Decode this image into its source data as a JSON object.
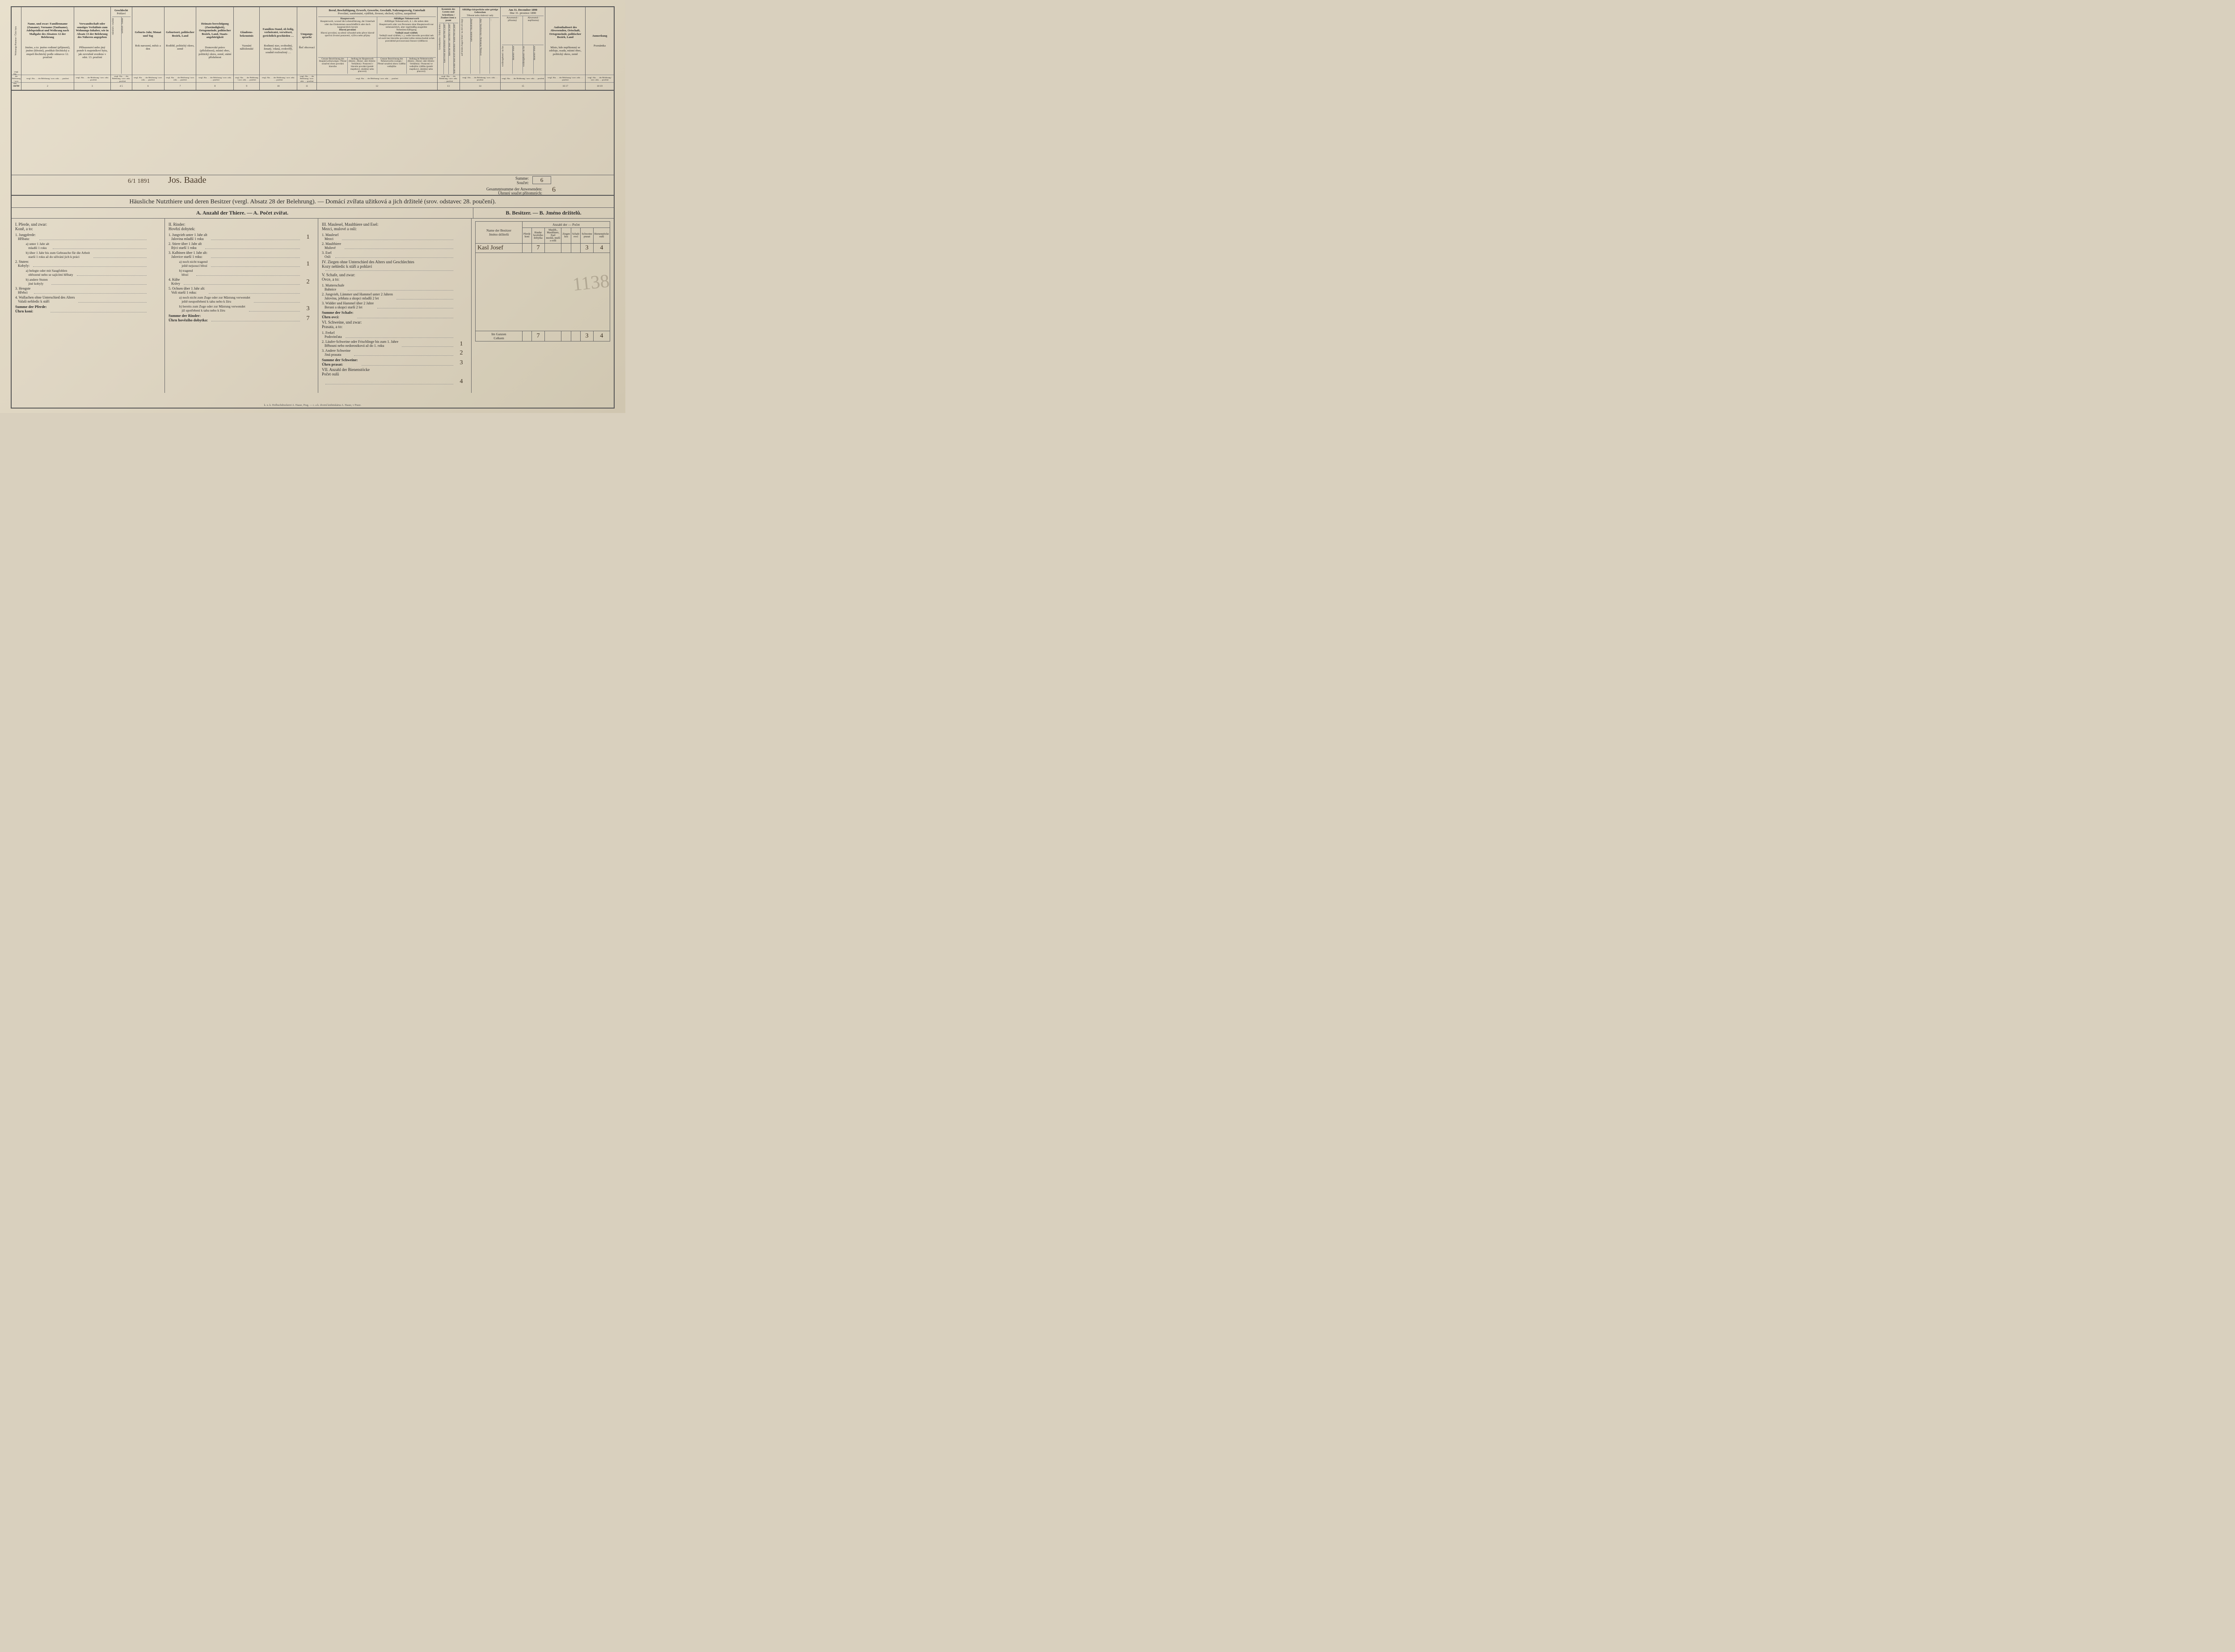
{
  "colors": {
    "paper": "#ddd4c0",
    "ink": "#2b2b2b",
    "hand_ink": "#3a2f22",
    "rule": "#666666"
  },
  "header": {
    "cols": [
      {
        "w": "w-num",
        "de": "Wohnungs-Nummer",
        "cz": "Číslo bytu"
      },
      {
        "w": "w-name",
        "de": "Name, und zwar: Familienname (Zuname), Vorname (Taufname), Adelsprädicat und Weihrang nach Maßgabe des Absatzes 12 der Belehrung",
        "cz": "Jméno, a to: jméno rodinné (příjmení), jméno (křestní), predikát šlechtický a stupeň šlechtický podle odstavce 12. poučení"
      },
      {
        "w": "w-rel",
        "de": "Verwandtschaft oder sonstiges Verhältnis zum Wohnungs-Inhaber, wie in Absatz 13 der Belehrung des Näheren angegeben",
        "cz": "Příbuzenství nebo jiný poměr k majetníkovi bytu, jak zevrubně uvedeno v odst. 13. poučení"
      },
      {
        "w": "w-sex",
        "de": "Geschlecht",
        "cz": "Pohlaví",
        "sub": [
          "männlich / mužské",
          "weiblich / ženské"
        ]
      },
      {
        "w": "w-birth",
        "de": "Geburts-Jahr, Monat und Tag",
        "cz": "Rok narození, měsíc a den"
      },
      {
        "w": "w-place",
        "de": "Geburtsort, politischer Bezirk, Land",
        "cz": "Rodiště, politický okres, země"
      },
      {
        "w": "w-heim",
        "de": "Heimats-berechtigung (Zuständigkeit), Ortsgemeinde, politischer Bezirk, Land, Staats-angehörigkeit",
        "cz": "Domovské právo (příslušnost), místní obec, politický okres, země, státní příslušnost"
      },
      {
        "w": "w-relig",
        "de": "Glaubens-bekenntnis",
        "cz": "Vyznání náboženské"
      },
      {
        "w": "w-fam",
        "de": "Familien-Stand, ob ledig, verheiratet, verwitwet, gerichtlich geschieden …",
        "cz": "Rodinný stav, svobodný, ženatý, vdaná, ovdovělý, soudně rozloučený …"
      },
      {
        "w": "w-lang",
        "de": "Umgangs-sprache",
        "cz": "Řeč obcovací"
      },
      {
        "w": "w-occ",
        "de": "Beruf, Beschäftigung, Erwerb, Gewerbe, Geschäft, Nahrungszweig, Unterhalt",
        "cz": "Povolání, zaměstnání, výdělek, živnost, obchod, výživa, zaopatření",
        "blocks": [
          {
            "de": "Haupterwerb, worauf die Lebensführung, der Unterhalt oder das Einkommen ausschließlich oder doch hauptsächlich beruht",
            "cz": "Hlavní povolání, na němž výhradně nebo přece hlavně spočívá životní postavení, výživa nebo příjmy",
            "sub": [
              "Genaue Bezeichnung des Haupterwerbszweiges / Přesné označení oboru povolání hlavního",
              "Stellung im Haupterwerb (Besitz-, Dienst- oder Arbeits-Verhältnis) / Postavení v hlavním povolání (poměr majetkový, služebný nebo pracovní)"
            ]
          },
          {
            "de": "Allfälliger Nebenerwerb, d. i. die neben dem Haupterwerb oder von Personen ohne Haupterwerb nur nebensächlich, aber regelmäßig ausgeübte Nebenbeschäftigung",
            "cz": "Vedlejší snad výdělek, t. j. vedle hlavního povolání neb od osob bez hlavního povolání toliko mimochodně avšak pravidelně provozovaná činnost výdělková",
            "sub": [
              "Genaue Bezeichnung des Nebenerwerbs-zweiges / Přesné označení oboru výdělku vedlejšího",
              "Stellung im Nebenerwerbe (Besitz-, Dienst- oder Arbeits-Verhältnis) / Postavení ve vedlejším výdělku (poměr majetkový, služebný nebo pracovní)"
            ]
          }
        ]
      },
      {
        "w": "w-lit",
        "de": "Kenntnis des Lesens und Schreibens / Znalost čtení a psaní",
        "sub": [
          "Grundsprache / Orální domu",
          "kann lesen und schreiben / umí čísti a psáti",
          "kann nur lesen / umí čísti a ne psáti",
          "kann weder lesen noch schreiben / neumí čísti ani psáti"
        ]
      },
      {
        "w": "w-def",
        "de": "Allfällige körperliche oder geistige Gebrechen",
        "cz": "Tělesné nebo duševní vady",
        "sub": [
          "auf beiden Augen blind / na obě oči slepý",
          "taubstumm / hluchoněmý",
          "irrsinnig, blödsinnig / choromyslný, blbý",
          "…"
        ]
      },
      {
        "w": "w-pres",
        "de": "Am 31. December 1890",
        "cz": "Dne 31. prosince 1890",
        "sub": [
          "Anwesend / přítomný",
          "Abwesend / nepřítomný"
        ],
        "sub2": [
          "vorübergehend / na čas",
          "dauernd / trvale",
          "vorübergehend / na čas",
          "dauernd / trvale"
        ]
      },
      {
        "w": "w-abs",
        "de": "Aufenthaltsort des Abwesenden, Ortschaft, Ortsgemeinde, politischer Bezirk, Land",
        "cz": "Místo, kde nepřítomný se zdržuje, osada, místní obec, politický okres, země"
      },
      {
        "w": "w-note",
        "de": "Anmerkung",
        "cz": "Poznámka"
      }
    ],
    "ref_row_label": "vergl. Abs. … der Belehrung / srov. odst. … poučení",
    "num_row": [
      "1a 1b",
      "2",
      "3",
      "4 5",
      "6",
      "7",
      "8",
      "9",
      "10",
      "11",
      "12",
      "13",
      "14",
      "15",
      "16 17",
      "18 19",
      "20 21 22 23",
      "24 25 26 27",
      "28",
      "29"
    ]
  },
  "summary": {
    "date_hand": "6/1 1891",
    "signature": "Jos. Baade",
    "sum_label_de": "Summe:",
    "sum_label_cz": "Součet:",
    "sum_val": "6",
    "total_label": "Gesammtsumme der Anwesenden:",
    "total_label_cz": "Úhrnný součet přítomných:",
    "total_val": "6"
  },
  "section": {
    "title": "Häusliche Nutzthiere und deren Besitzer (vergl. Absatz 28 der Belehrung). — Domácí zvířata užitková a jich držitelé (srov. odstavec 28. poučení).",
    "subA": "A. Anzahl der Thiere. — A. Počet zvířat.",
    "subB": "B. Besitzer. — B. Jméno držitelů."
  },
  "livestock": {
    "I": {
      "head": "I. Pferde, und zwar:\nKoně, a to:",
      "items": [
        {
          "lbl": "1. Jungpferde:\n   Hříbata:",
          "val": ""
        },
        {
          "lbl": "   a) unter 1 Jahr alt\n      mladší 1 roku",
          "cls": "subitem",
          "val": ""
        },
        {
          "lbl": "   b) über 1 Jahr bis zum Gebrauche für die Arbeit\n      starší 1 roku až do užívání jich k práci",
          "cls": "subitem",
          "val": ""
        },
        {
          "lbl": "2. Stuten:\n   Kobyly:",
          "val": ""
        },
        {
          "lbl": "   a) belegte oder mit Saugfohlen\n      obřezené nebo se sajícími hříbaty",
          "cls": "subitem",
          "val": ""
        },
        {
          "lbl": "   b) andere Stuten\n      jiné kobyly",
          "cls": "subitem",
          "val": ""
        },
        {
          "lbl": "3. Hengste\n   Hřebci",
          "val": ""
        },
        {
          "lbl": "4. Wallachen ohne Unterschied des Alters\n   Valaši nehledíc k stáří",
          "val": ""
        },
        {
          "lbl": "Summe der Pferde:\nÚhrn koní:",
          "cls": "sumline",
          "val": ""
        }
      ]
    },
    "II": {
      "head": "II. Rinder:\nHovězí dobytek:",
      "items": [
        {
          "lbl": "1. Jungvieh unter 1 Jahr alt\n   Jalovina mladší 1 roku",
          "val": "1"
        },
        {
          "lbl": "2. Stiere über 1 Jahr alt\n   Býci starší 1 roku",
          "val": ""
        },
        {
          "lbl": "3. Kalbinen über 1 Jahr alt:\n   Jalovice starší 1 roku:",
          "val": ""
        },
        {
          "lbl": "   a) noch nicht tragend\n      ještě nejsoucí březí",
          "cls": "subitem",
          "val": "1"
        },
        {
          "lbl": "   b) tragend\n      březí",
          "cls": "subitem",
          "val": ""
        },
        {
          "lbl": "4. Kühe\n   Krávy",
          "val": "2"
        },
        {
          "lbl": "5. Ochsen über 1 Jahr alt:\n   Voli starší 1 roku:",
          "val": ""
        },
        {
          "lbl": "   a) noch nicht zum Zuge oder zur Mästung verwendet\n      ještě neupotřebení k tahu nebo k žíru",
          "cls": "subitem",
          "val": ""
        },
        {
          "lbl": "   b) bereits zum Zuge oder zur Mästung verwendet\n      již upotřebení k tahu nebo k žíru",
          "cls": "subitem",
          "val": "3"
        },
        {
          "lbl": "Summe der Rinder:\nÚhrn hovězího dobytka:",
          "cls": "sumline",
          "val": "7"
        }
      ]
    },
    "III": {
      "head": "III. Maulesel, Maulthiere und Esel:\nMezci, mulové a osli:",
      "items": [
        {
          "lbl": "1. Maulesel\n   Mezci",
          "val": ""
        },
        {
          "lbl": "2. Maulthiere\n   Mulové",
          "val": ""
        },
        {
          "lbl": "3. Esel\n   Osli",
          "val": ""
        }
      ],
      "IV": {
        "head": "IV. Ziegen ohne Unterschied des Alters und Geschlechtes\nKozy nehledíc k stáří a pohlaví",
        "val": ""
      },
      "V": {
        "head": "V. Schafe, und zwar:\nOvce, a to:",
        "items": [
          {
            "lbl": "1. Mutterschafe\n   Bahnice",
            "val": ""
          },
          {
            "lbl": "2. Jungvieh, Lämmer und Hammel unter 2 Jahren\n   Jalovina, jehňata a skopci mladší 2 let",
            "val": ""
          },
          {
            "lbl": "3. Widder und Hammel über 2 Jahre\n   Berani a skopci starší 2 let",
            "val": ""
          },
          {
            "lbl": "Summe der Schafe:\nÚhrn ovcí:",
            "cls": "sumline",
            "val": ""
          }
        ]
      },
      "VI": {
        "head": "VI. Schweine, und zwar:\nPrasata, a to:",
        "items": [
          {
            "lbl": "1. Ferkel\n   Podsvinčata",
            "val": ""
          },
          {
            "lbl": "2. Läufer-Schweine oder Frischlinge bis zum 1. Jahre\n   Běhouni nebo nedorostková až do 1. roku",
            "val": "1"
          },
          {
            "lbl": "3. Andere Schweine\n   Jiná prasata",
            "val": "2"
          },
          {
            "lbl": "Summe der Schweine:\nÚhrn prasat:",
            "cls": "sumline",
            "val": "3"
          }
        ]
      },
      "VII": {
        "head": "VII. Anzahl der Bienenstöcke\nPočet oulů",
        "val": "4"
      }
    }
  },
  "owners": {
    "name_head": "Name der Besitzer\nJméno držitelů",
    "count_head": "Anzahl der — Počet",
    "cols": [
      "Pferde\nkoní",
      "Rinder\nhovězího dobytka",
      "Maulth., Maulthiere, Esel\nmezků, mulů a oslů",
      "Ziegen\nkoz",
      "Schafe\novcí",
      "Schweine\nprasat",
      "Bienenstöcke\noulů"
    ],
    "rows": [
      {
        "name": "Kasl Josef",
        "vals": [
          "",
          "7",
          "",
          "",
          "",
          "3",
          "4"
        ]
      }
    ],
    "totals_label": "Im Ganzen\nCelkem",
    "totals": [
      "",
      "7",
      "",
      "",
      "",
      "3",
      "4"
    ]
  },
  "scrawl": "1138",
  "imprint": "k. u. k. Hofbuchdruckerei A. Haase, Prag. — c. a k. dvorní knihtiskárna A. Haase, v Praze."
}
